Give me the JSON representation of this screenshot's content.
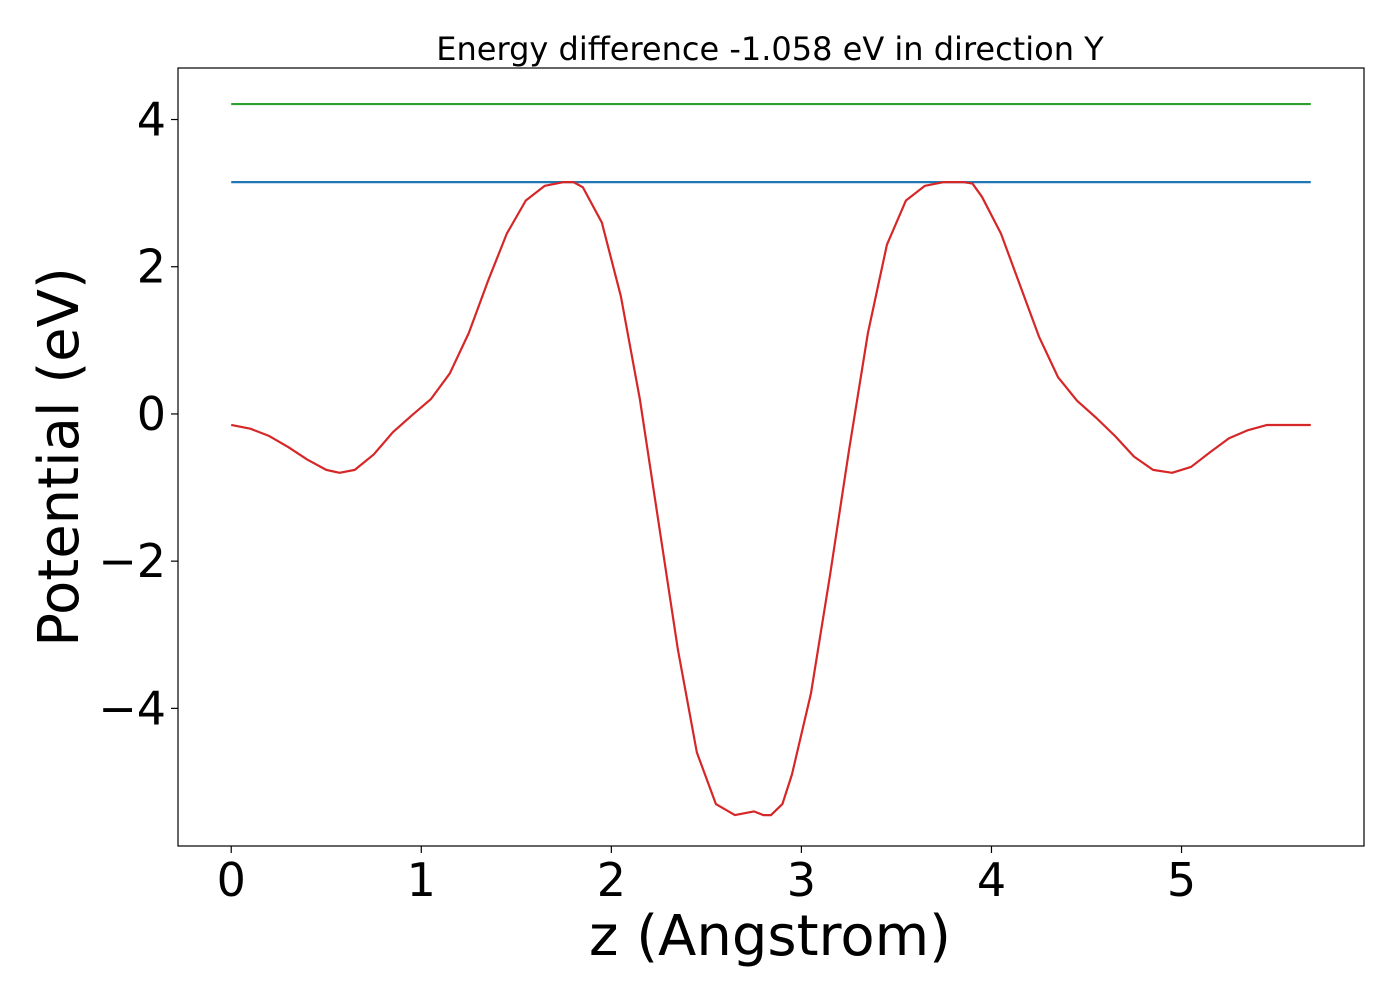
{
  "chart_data": {
    "type": "line",
    "title": "Energy difference -1.058 eV in direction Y",
    "xlabel": "z (Angstrom)",
    "ylabel": "Potential (eV)",
    "xlim": [
      -0.28,
      5.96
    ],
    "ylim": [
      -5.87,
      4.7
    ],
    "grid": false,
    "legend": "none",
    "x_ticks": [
      0,
      1,
      2,
      3,
      4,
      5
    ],
    "x_tick_labels": [
      "0",
      "1",
      "2",
      "3",
      "4",
      "5"
    ],
    "y_ticks": [
      -4,
      -2,
      0,
      2,
      4
    ],
    "y_tick_labels": [
      "−4",
      "−2",
      "0",
      "2",
      "4"
    ],
    "series": [
      {
        "color": "#2ca02c",
        "x": [
          0,
          5.68
        ],
        "y": [
          4.21,
          4.21
        ]
      },
      {
        "color": "#1f77b4",
        "x": [
          0,
          5.68
        ],
        "y": [
          3.15,
          3.15
        ]
      },
      {
        "color": "#d62728",
        "x": [
          0.0,
          0.1,
          0.2,
          0.3,
          0.4,
          0.5,
          0.57,
          0.65,
          0.75,
          0.85,
          0.95,
          1.05,
          1.15,
          1.25,
          1.35,
          1.45,
          1.55,
          1.65,
          1.75,
          1.8,
          1.85,
          1.95,
          2.05,
          2.15,
          2.25,
          2.35,
          2.45,
          2.55,
          2.65,
          2.75,
          2.8,
          2.84,
          2.9,
          2.95,
          3.05,
          3.15,
          3.25,
          3.35,
          3.45,
          3.55,
          3.65,
          3.75,
          3.85,
          3.9,
          3.95,
          4.05,
          4.15,
          4.25,
          4.35,
          4.45,
          4.55,
          4.65,
          4.75,
          4.85,
          4.95,
          5.05,
          5.15,
          5.25,
          5.35,
          5.45,
          5.55,
          5.68
        ],
        "y": [
          -0.15,
          -0.2,
          -0.3,
          -0.45,
          -0.62,
          -0.76,
          -0.8,
          -0.76,
          -0.55,
          -0.25,
          -0.02,
          0.2,
          0.55,
          1.1,
          1.8,
          2.45,
          2.9,
          3.1,
          3.15,
          3.15,
          3.08,
          2.6,
          1.6,
          0.2,
          -1.5,
          -3.2,
          -4.6,
          -5.3,
          -5.45,
          -5.4,
          -5.45,
          -5.45,
          -5.3,
          -4.9,
          -3.8,
          -2.2,
          -0.5,
          1.1,
          2.3,
          2.9,
          3.1,
          3.15,
          3.15,
          3.13,
          2.95,
          2.45,
          1.75,
          1.05,
          0.5,
          0.18,
          -0.05,
          -0.3,
          -0.58,
          -0.76,
          -0.8,
          -0.72,
          -0.52,
          -0.33,
          -0.22,
          -0.15,
          -0.15,
          -0.15
        ]
      }
    ]
  }
}
